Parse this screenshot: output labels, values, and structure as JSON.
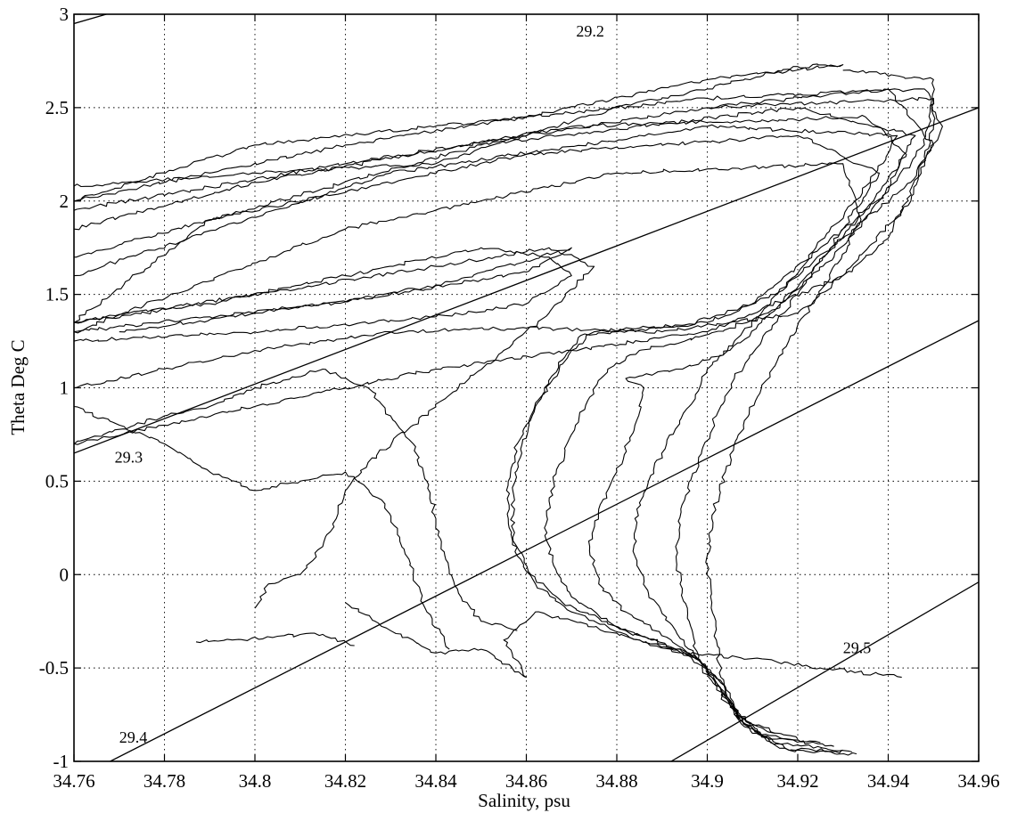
{
  "chart_data": {
    "type": "line",
    "title": "",
    "xlabel": "Salinity, psu",
    "ylabel": "Theta Deg C",
    "xlim": [
      34.76,
      34.96
    ],
    "ylim": [
      -1,
      3
    ],
    "grid": true,
    "grid_style": "dotted",
    "x_ticks": [
      "34.76",
      "34.78",
      "34.8",
      "34.82",
      "34.84",
      "34.86",
      "34.88",
      "34.9",
      "34.92",
      "34.94",
      "34.96"
    ],
    "y_ticks": [
      "-1",
      "-0.5",
      "0",
      "0.5",
      "1",
      "1.5",
      "2",
      "2.5",
      "3"
    ],
    "color": "#000000",
    "isopycnals": [
      {
        "label": "29.2",
        "points": [
          [
            34.76,
            2.95
          ],
          [
            34.96,
            4.35
          ]
        ],
        "label_at": [
          34.871,
          2.88
        ]
      },
      {
        "label": "29.3",
        "points": [
          [
            34.76,
            0.65
          ],
          [
            34.96,
            2.5
          ]
        ],
        "label_at": [
          34.769,
          0.6
        ]
      },
      {
        "label": "29.4",
        "points": [
          [
            34.768,
            -1.0
          ],
          [
            34.96,
            1.36
          ]
        ],
        "label_at": [
          34.77,
          -0.9
        ]
      },
      {
        "label": "29.5",
        "points": [
          [
            34.892,
            -1.0
          ],
          [
            34.96,
            -0.04
          ]
        ],
        "label_at": [
          34.93,
          -0.42
        ]
      }
    ],
    "profiles": [
      {
        "points": [
          [
            34.933,
            -0.96
          ],
          [
            34.918,
            -0.94
          ],
          [
            34.908,
            -0.8
          ],
          [
            34.904,
            -0.6
          ],
          [
            34.898,
            -0.45
          ],
          [
            34.885,
            -0.35
          ],
          [
            34.87,
            -0.2
          ],
          [
            34.862,
            -0.05
          ],
          [
            34.858,
            0.1
          ],
          [
            34.856,
            0.3
          ],
          [
            34.856,
            0.5
          ],
          [
            34.858,
            0.7
          ],
          [
            34.862,
            0.9
          ],
          [
            34.866,
            1.05
          ],
          [
            34.87,
            1.2
          ],
          [
            34.875,
            1.3
          ],
          [
            34.885,
            1.32
          ],
          [
            34.9,
            1.35
          ],
          [
            34.915,
            1.5
          ],
          [
            34.93,
            1.8
          ],
          [
            34.945,
            2.1
          ],
          [
            34.952,
            2.4
          ],
          [
            34.948,
            2.6
          ],
          [
            34.9,
            2.55
          ],
          [
            34.8,
            2.3
          ],
          [
            34.76,
            2.0
          ]
        ]
      },
      {
        "points": [
          [
            34.932,
            -0.95
          ],
          [
            34.916,
            -0.93
          ],
          [
            34.907,
            -0.78
          ],
          [
            34.903,
            -0.58
          ],
          [
            34.896,
            -0.42
          ],
          [
            34.882,
            -0.3
          ],
          [
            34.868,
            -0.15
          ],
          [
            34.861,
            0.0
          ],
          [
            34.857,
            0.2
          ],
          [
            34.857,
            0.45
          ],
          [
            34.859,
            0.65
          ],
          [
            34.861,
            0.85
          ],
          [
            34.864,
            1.0
          ],
          [
            34.868,
            1.15
          ],
          [
            34.872,
            1.28
          ],
          [
            34.88,
            1.3
          ],
          [
            34.895,
            1.33
          ],
          [
            34.91,
            1.45
          ],
          [
            34.925,
            1.75
          ],
          [
            34.94,
            2.05
          ],
          [
            34.948,
            2.3
          ],
          [
            34.95,
            2.55
          ],
          [
            34.9,
            2.5
          ],
          [
            34.82,
            2.2
          ],
          [
            34.76,
            1.95
          ]
        ]
      },
      {
        "points": [
          [
            34.93,
            -0.94
          ],
          [
            34.914,
            -0.9
          ],
          [
            34.906,
            -0.72
          ],
          [
            34.901,
            -0.55
          ],
          [
            34.894,
            -0.4
          ],
          [
            34.88,
            -0.28
          ],
          [
            34.87,
            -0.12
          ],
          [
            34.866,
            0.05
          ],
          [
            34.864,
            0.25
          ],
          [
            34.866,
            0.5
          ],
          [
            34.87,
            0.75
          ],
          [
            34.874,
            0.95
          ],
          [
            34.878,
            1.1
          ],
          [
            34.885,
            1.2
          ],
          [
            34.895,
            1.25
          ],
          [
            34.905,
            1.32
          ],
          [
            34.915,
            1.42
          ],
          [
            34.928,
            1.7
          ],
          [
            34.938,
            2.0
          ],
          [
            34.946,
            2.35
          ],
          [
            34.92,
            2.5
          ],
          [
            34.85,
            2.3
          ],
          [
            34.76,
            1.7
          ]
        ]
      },
      {
        "points": [
          [
            34.928,
            -0.92
          ],
          [
            34.912,
            -0.87
          ],
          [
            34.905,
            -0.7
          ],
          [
            34.9,
            -0.5
          ],
          [
            34.892,
            -0.35
          ],
          [
            34.882,
            -0.2
          ],
          [
            34.876,
            -0.05
          ],
          [
            34.874,
            0.15
          ],
          [
            34.876,
            0.35
          ],
          [
            34.88,
            0.55
          ],
          [
            34.884,
            0.8
          ],
          [
            34.886,
            1.0
          ],
          [
            34.882,
            1.05
          ],
          [
            34.894,
            1.1
          ],
          [
            34.905,
            1.2
          ],
          [
            34.912,
            1.35
          ],
          [
            34.922,
            1.6
          ],
          [
            34.935,
            1.95
          ],
          [
            34.944,
            2.25
          ],
          [
            34.935,
            2.45
          ],
          [
            34.87,
            2.4
          ],
          [
            34.8,
            2.1
          ],
          [
            34.76,
            1.85
          ]
        ]
      },
      {
        "points": [
          [
            34.925,
            -0.9
          ],
          [
            34.91,
            -0.85
          ],
          [
            34.904,
            -0.68
          ],
          [
            34.899,
            -0.48
          ],
          [
            34.893,
            -0.3
          ],
          [
            34.887,
            -0.1
          ],
          [
            34.884,
            0.1
          ],
          [
            34.884,
            0.3
          ],
          [
            34.887,
            0.5
          ],
          [
            34.891,
            0.7
          ],
          [
            34.896,
            0.9
          ],
          [
            34.9,
            1.1
          ],
          [
            34.906,
            1.25
          ],
          [
            34.914,
            1.45
          ],
          [
            34.924,
            1.75
          ],
          [
            34.936,
            2.1
          ],
          [
            34.942,
            2.35
          ],
          [
            34.9,
            2.4
          ],
          [
            34.83,
            2.15
          ],
          [
            34.76,
            1.6
          ]
        ]
      },
      {
        "points": [
          [
            34.92,
            -0.88
          ],
          [
            34.908,
            -0.8
          ],
          [
            34.903,
            -0.62
          ],
          [
            34.898,
            -0.45
          ],
          [
            34.896,
            -0.25
          ],
          [
            34.894,
            -0.05
          ],
          [
            34.893,
            0.15
          ],
          [
            34.895,
            0.4
          ],
          [
            34.898,
            0.6
          ],
          [
            34.902,
            0.85
          ],
          [
            34.906,
            1.05
          ],
          [
            34.912,
            1.25
          ],
          [
            34.92,
            1.5
          ],
          [
            34.93,
            1.85
          ],
          [
            34.938,
            2.15
          ],
          [
            34.92,
            2.35
          ],
          [
            34.86,
            2.25
          ],
          [
            34.79,
            1.9
          ],
          [
            34.76,
            1.35
          ]
        ]
      },
      {
        "points": [
          [
            34.915,
            -0.85
          ],
          [
            34.906,
            -0.75
          ],
          [
            34.903,
            -0.55
          ],
          [
            34.902,
            -0.35
          ],
          [
            34.901,
            -0.15
          ],
          [
            34.9,
            0.05
          ],
          [
            34.901,
            0.3
          ],
          [
            34.904,
            0.55
          ],
          [
            34.908,
            0.8
          ],
          [
            34.912,
            1.0
          ],
          [
            34.918,
            1.25
          ],
          [
            34.926,
            1.55
          ],
          [
            34.934,
            1.9
          ],
          [
            34.93,
            2.2
          ],
          [
            34.88,
            2.15
          ],
          [
            34.82,
            1.85
          ],
          [
            34.76,
            1.3
          ]
        ]
      },
      {
        "points": [
          [
            34.943,
            -0.55
          ],
          [
            34.925,
            -0.5
          ],
          [
            34.91,
            -0.45
          ],
          [
            34.895,
            -0.42
          ],
          [
            34.885,
            -0.35
          ],
          [
            34.875,
            -0.28
          ],
          [
            34.862,
            -0.2
          ],
          [
            34.855,
            -0.35
          ],
          [
            34.86,
            -0.55
          ],
          [
            34.85,
            -0.4
          ],
          [
            34.84,
            -0.42
          ],
          [
            34.83,
            -0.3
          ],
          [
            34.82,
            -0.15
          ]
        ]
      },
      {
        "points": [
          [
            34.858,
            -0.3
          ],
          [
            34.85,
            -0.25
          ],
          [
            34.845,
            -0.1
          ],
          [
            34.842,
            0.1
          ],
          [
            34.84,
            0.3
          ],
          [
            34.838,
            0.5
          ],
          [
            34.835,
            0.7
          ],
          [
            34.83,
            0.85
          ],
          [
            34.825,
            1.0
          ],
          [
            34.815,
            1.1
          ],
          [
            34.8,
            1.0
          ],
          [
            34.79,
            0.9
          ],
          [
            34.78,
            0.85
          ],
          [
            34.76,
            0.7
          ]
        ]
      },
      {
        "points": [
          [
            34.843,
            -0.4
          ],
          [
            34.838,
            -0.2
          ],
          [
            34.835,
            0.0
          ],
          [
            34.832,
            0.2
          ],
          [
            34.828,
            0.4
          ],
          [
            34.82,
            0.55
          ],
          [
            34.81,
            0.5
          ],
          [
            34.8,
            0.45
          ],
          [
            34.79,
            0.55
          ],
          [
            34.78,
            0.7
          ],
          [
            34.77,
            0.8
          ],
          [
            34.76,
            0.9
          ]
        ]
      },
      {
        "points": [
          [
            34.8,
            -0.18
          ],
          [
            34.803,
            -0.05
          ],
          [
            34.81,
            0.0
          ],
          [
            34.815,
            0.15
          ],
          [
            34.818,
            0.3
          ],
          [
            34.82,
            0.45
          ],
          [
            34.825,
            0.6
          ],
          [
            34.835,
            0.8
          ],
          [
            34.845,
            1.0
          ],
          [
            34.855,
            1.2
          ],
          [
            34.865,
            1.4
          ],
          [
            34.875,
            1.65
          ],
          [
            34.865,
            1.75
          ],
          [
            34.84,
            1.65
          ],
          [
            34.8,
            1.5
          ],
          [
            34.76,
            1.35
          ]
        ]
      },
      {
        "points": [
          [
            34.787,
            -0.36
          ],
          [
            34.795,
            -0.35
          ],
          [
            34.805,
            -0.33
          ],
          [
            34.815,
            -0.32
          ],
          [
            34.822,
            -0.38
          ]
        ]
      },
      {
        "points": [
          [
            34.76,
            2.08
          ],
          [
            34.8,
            2.15
          ],
          [
            34.84,
            2.2
          ],
          [
            34.86,
            2.35
          ],
          [
            34.88,
            2.5
          ],
          [
            34.9,
            2.6
          ],
          [
            34.92,
            2.72
          ],
          [
            34.93,
            2.73
          ],
          [
            34.9,
            2.65
          ],
          [
            34.86,
            2.45
          ],
          [
            34.82,
            2.3
          ],
          [
            34.79,
            2.15
          ],
          [
            34.76,
            2.0
          ]
        ]
      },
      {
        "points": [
          [
            34.76,
            1.3
          ],
          [
            34.79,
            1.38
          ],
          [
            34.82,
            1.46
          ],
          [
            34.84,
            1.55
          ],
          [
            34.86,
            1.68
          ],
          [
            34.87,
            1.75
          ],
          [
            34.86,
            1.62
          ],
          [
            34.83,
            1.5
          ],
          [
            34.8,
            1.4
          ],
          [
            34.77,
            1.3
          ]
        ]
      },
      {
        "points": [
          [
            34.76,
            1.25
          ],
          [
            34.8,
            1.3
          ],
          [
            34.84,
            1.38
          ],
          [
            34.86,
            1.45
          ],
          [
            34.87,
            1.6
          ],
          [
            34.865,
            1.7
          ],
          [
            34.85,
            1.75
          ],
          [
            34.82,
            1.6
          ],
          [
            34.79,
            1.45
          ],
          [
            34.76,
            1.35
          ]
        ]
      },
      {
        "points": [
          [
            34.76,
            1.0
          ],
          [
            34.78,
            1.1
          ],
          [
            34.8,
            1.2
          ],
          [
            34.83,
            1.3
          ],
          [
            34.86,
            1.32
          ],
          [
            34.89,
            1.3
          ],
          [
            34.92,
            1.4
          ],
          [
            34.94,
            1.8
          ],
          [
            34.95,
            2.3
          ],
          [
            34.94,
            2.6
          ],
          [
            34.9,
            2.5
          ]
        ]
      },
      {
        "points": [
          [
            34.76,
            0.7
          ],
          [
            34.78,
            0.8
          ],
          [
            34.81,
            0.95
          ],
          [
            34.84,
            1.1
          ],
          [
            34.87,
            1.2
          ],
          [
            34.9,
            1.3
          ],
          [
            34.93,
            1.6
          ],
          [
            34.945,
            2.0
          ],
          [
            34.95,
            2.4
          ],
          [
            34.95,
            2.65
          ],
          [
            34.93,
            2.7
          ]
        ]
      }
    ]
  }
}
